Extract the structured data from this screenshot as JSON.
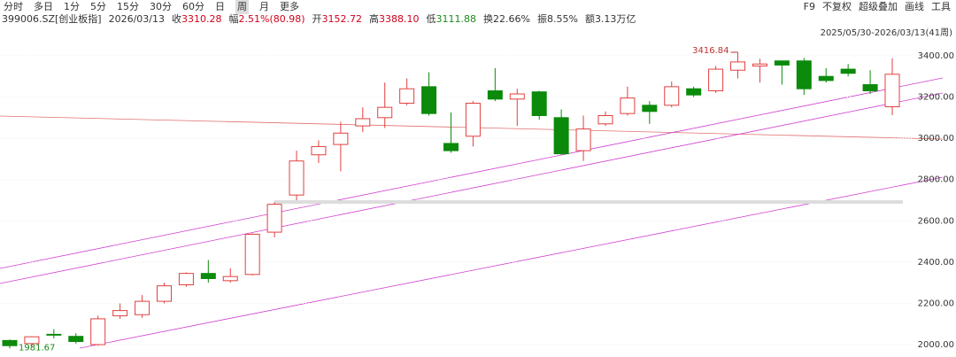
{
  "toolbar": {
    "periods": [
      "分时",
      "多日",
      "1分",
      "5分",
      "15分",
      "30分",
      "60分",
      "日",
      "周",
      "月",
      "更多"
    ],
    "active": 8,
    "right": [
      "F9",
      "不复权",
      "超级叠加",
      "画线",
      "工具"
    ]
  },
  "info": {
    "symbol": "399006.SZ[创业板指]",
    "date": "2026/03/13",
    "items": [
      {
        "label": "收",
        "value": "3310.28",
        "color": "#d0021b"
      },
      {
        "label": "幅",
        "value": "2.51%(80.98)",
        "color": "#d0021b"
      },
      {
        "label": "开",
        "value": "3152.72",
        "color": "#d0021b"
      },
      {
        "label": "高",
        "value": "3388.10",
        "color": "#d0021b"
      },
      {
        "label": "低",
        "value": "3111.88",
        "color": "#1a8a1a"
      },
      {
        "label": "换",
        "value": "22.66%",
        "color": "#333333"
      },
      {
        "label": "振",
        "value": "8.55%",
        "color": "#333333"
      },
      {
        "label": "额",
        "value": "3.13万亿",
        "color": "#333333"
      }
    ]
  },
  "chart_data": {
    "type": "candlestick",
    "range_label": "2025/05/30-2026/03/13(41周)",
    "up_color": "#e0403f",
    "down_color": "#0b8a0b",
    "grid": true,
    "open": [
      2020,
      2005,
      2050,
      2040,
      2000,
      2140,
      2145,
      2210,
      2290,
      2345,
      2310,
      2340,
      2545,
      2725,
      2920,
      2970,
      3060,
      3100,
      3170,
      3250,
      2975,
      3010,
      3230,
      3190,
      3225,
      3100,
      2940,
      3070,
      3120,
      3160,
      3160,
      3240,
      3230,
      3330,
      3350,
      3375,
      3375,
      3300,
      3335,
      3260,
      3152.72
    ],
    "high": [
      2025,
      2040,
      2075,
      2055,
      2140,
      2200,
      2240,
      2300,
      2350,
      2410,
      2370,
      2540,
      2690,
      2940,
      2990,
      3080,
      3150,
      3270,
      3290,
      3320,
      3125,
      3180,
      3340,
      3240,
      3230,
      3140,
      3110,
      3130,
      3250,
      3180,
      3275,
      3250,
      3350,
      3416.84,
      3385,
      3375,
      3390,
      3340,
      3360,
      3330,
      3388.1
    ],
    "low": [
      1981.67,
      1990,
      2030,
      2005,
      1995,
      2125,
      2130,
      2200,
      2280,
      2300,
      2300,
      2335,
      2520,
      2700,
      2880,
      2840,
      3030,
      3050,
      3160,
      3110,
      2930,
      2960,
      3180,
      3060,
      3090,
      2920,
      2890,
      3060,
      3110,
      3070,
      3150,
      3200,
      3220,
      3290,
      3270,
      3260,
      3210,
      3270,
      3300,
      3215,
      3111.88
    ],
    "close": [
      1995,
      2038,
      2048,
      2015,
      2125,
      2165,
      2210,
      2285,
      2345,
      2320,
      2330,
      2535,
      2680,
      2890,
      2960,
      3025,
      3095,
      3150,
      3240,
      3120,
      2940,
      3170,
      3190,
      3215,
      3110,
      2925,
      3045,
      3110,
      3195,
      3130,
      3250,
      3210,
      3335,
      3370,
      3360,
      3355,
      3240,
      3280,
      3315,
      3230,
      3310.28
    ],
    "ylim": [
      1940,
      3477
    ],
    "yticks": [
      {
        "value": 2000,
        "label": "2000.00"
      },
      {
        "value": 2200,
        "label": "2200.00"
      },
      {
        "value": 2400,
        "label": "2400.00"
      },
      {
        "value": 2600,
        "label": "2600.00"
      },
      {
        "value": 2800,
        "label": "2800.00"
      },
      {
        "value": 3000,
        "label": "3000.00"
      },
      {
        "value": 3200,
        "label": "3200.00"
      },
      {
        "value": 3400,
        "label": "3400.00"
      }
    ]
  }
}
